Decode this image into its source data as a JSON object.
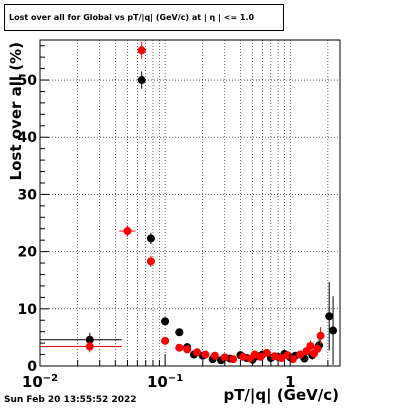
{
  "chart_data": {
    "type": "scatter",
    "title": "Lost over all for Global vs pT/|q| (GeV/c) at | η | <= 1.0",
    "xlabel": "pT/|q| (GeV/c)",
    "ylabel": "Lost over all (%)",
    "xscale": "log",
    "xlim": [
      0.01,
      2.5
    ],
    "ylim": [
      0,
      57
    ],
    "grid": true,
    "x_ticks": [
      {
        "value": 0.01,
        "base": "10",
        "exp": "−2"
      },
      {
        "value": 0.1,
        "base": "10",
        "exp": "−1"
      },
      {
        "value": 1,
        "base": "1",
        "exp": ""
      }
    ],
    "y_ticks": [
      0,
      10,
      20,
      30,
      40,
      50
    ],
    "series": [
      {
        "color": "#000000",
        "points": [
          {
            "x": 0.025,
            "y": 4.6,
            "xlo": 0.01,
            "xhi": 0.045,
            "yerr": 1.2
          },
          {
            "x": 0.065,
            "y": 50.0,
            "xlo": 0.062,
            "xhi": 0.068,
            "yerr": 1.5
          },
          {
            "x": 0.077,
            "y": 22.3,
            "xlo": 0.072,
            "xhi": 0.083,
            "yerr": 1.0
          },
          {
            "x": 0.1,
            "y": 7.8,
            "xlo": 0.093,
            "xhi": 0.107,
            "yerr": 0.7
          },
          {
            "x": 0.13,
            "y": 5.9,
            "xlo": 0.12,
            "xhi": 0.14,
            "yerr": 0.6
          },
          {
            "x": 0.15,
            "y": 3.3,
            "xlo": 0.14,
            "xhi": 0.16,
            "yerr": 0.5
          },
          {
            "x": 0.17,
            "y": 2.0,
            "xlo": 0.16,
            "xhi": 0.18,
            "yerr": 0.4
          },
          {
            "x": 0.2,
            "y": 1.8,
            "xlo": 0.19,
            "xhi": 0.21,
            "yerr": 0.4
          },
          {
            "x": 0.24,
            "y": 1.2,
            "xlo": 0.23,
            "xhi": 0.25,
            "yerr": 0.3
          },
          {
            "x": 0.28,
            "y": 1.0,
            "xlo": 0.27,
            "xhi": 0.29,
            "yerr": 0.3
          },
          {
            "x": 0.33,
            "y": 1.3,
            "xlo": 0.32,
            "xhi": 0.34,
            "yerr": 0.3
          },
          {
            "x": 0.4,
            "y": 1.9,
            "xlo": 0.39,
            "xhi": 0.41,
            "yerr": 0.4
          },
          {
            "x": 0.45,
            "y": 1.4,
            "xlo": 0.44,
            "xhi": 0.46,
            "yerr": 0.4
          },
          {
            "x": 0.5,
            "y": 1.1,
            "xlo": 0.49,
            "xhi": 0.51,
            "yerr": 0.4
          },
          {
            "x": 0.55,
            "y": 1.7,
            "xlo": 0.54,
            "xhi": 0.56,
            "yerr": 0.4
          },
          {
            "x": 0.6,
            "y": 2.0,
            "xlo": 0.59,
            "xhi": 0.61,
            "yerr": 0.5
          },
          {
            "x": 0.7,
            "y": 1.4,
            "xlo": 0.69,
            "xhi": 0.71,
            "yerr": 0.5
          },
          {
            "x": 0.8,
            "y": 1.6,
            "xlo": 0.79,
            "xhi": 0.81,
            "yerr": 0.5
          },
          {
            "x": 0.9,
            "y": 2.1,
            "xlo": 0.89,
            "xhi": 0.91,
            "yerr": 0.5
          },
          {
            "x": 1.0,
            "y": 1.5,
            "xlo": 0.99,
            "xhi": 1.01,
            "yerr": 0.5
          },
          {
            "x": 1.1,
            "y": 1.8,
            "xlo": 1.09,
            "xhi": 1.11,
            "yerr": 0.6
          },
          {
            "x": 1.3,
            "y": 1.3,
            "xlo": 1.29,
            "xhi": 1.31,
            "yerr": 0.6
          },
          {
            "x": 1.5,
            "y": 1.9,
            "xlo": 1.49,
            "xhi": 1.51,
            "yerr": 0.8
          },
          {
            "x": 1.7,
            "y": 3.6,
            "xlo": 1.69,
            "xhi": 1.71,
            "yerr": 1.2
          },
          {
            "x": 2.05,
            "y": 8.7,
            "xlo": 2.03,
            "xhi": 2.07,
            "yerr": 6.0
          },
          {
            "x": 2.2,
            "y": 6.2,
            "xlo": 2.18,
            "xhi": 2.22,
            "yerr": 6.0
          }
        ]
      },
      {
        "color": "#ff0000",
        "points": [
          {
            "x": 0.025,
            "y": 3.4,
            "xlo": 0.01,
            "xhi": 0.045,
            "yerr": 1.0
          },
          {
            "x": 0.05,
            "y": 23.6,
            "xlo": 0.043,
            "xhi": 0.058,
            "yerr": 1.0
          },
          {
            "x": 0.065,
            "y": 55.2,
            "xlo": 0.062,
            "xhi": 0.068,
            "yerr": 1.5
          },
          {
            "x": 0.077,
            "y": 18.3,
            "xlo": 0.072,
            "xhi": 0.083,
            "yerr": 1.0
          },
          {
            "x": 0.1,
            "y": 4.4,
            "xlo": 0.093,
            "xhi": 0.107,
            "yerr": 0.6
          },
          {
            "x": 0.13,
            "y": 3.2,
            "xlo": 0.12,
            "xhi": 0.14,
            "yerr": 0.5
          },
          {
            "x": 0.15,
            "y": 2.9,
            "xlo": 0.14,
            "xhi": 0.16,
            "yerr": 0.5
          },
          {
            "x": 0.18,
            "y": 2.4,
            "xlo": 0.17,
            "xhi": 0.19,
            "yerr": 0.4
          },
          {
            "x": 0.21,
            "y": 2.0,
            "xlo": 0.2,
            "xhi": 0.22,
            "yerr": 0.4
          },
          {
            "x": 0.25,
            "y": 1.8,
            "xlo": 0.24,
            "xhi": 0.26,
            "yerr": 0.3
          },
          {
            "x": 0.3,
            "y": 1.5,
            "xlo": 0.29,
            "xhi": 0.31,
            "yerr": 0.3
          },
          {
            "x": 0.35,
            "y": 1.2,
            "xlo": 0.34,
            "xhi": 0.36,
            "yerr": 0.3
          },
          {
            "x": 0.42,
            "y": 1.6,
            "xlo": 0.41,
            "xhi": 0.43,
            "yerr": 0.4
          },
          {
            "x": 0.48,
            "y": 1.3,
            "xlo": 0.47,
            "xhi": 0.49,
            "yerr": 0.4
          },
          {
            "x": 0.52,
            "y": 2.0,
            "xlo": 0.51,
            "xhi": 0.53,
            "yerr": 0.4
          },
          {
            "x": 0.58,
            "y": 1.6,
            "xlo": 0.57,
            "xhi": 0.59,
            "yerr": 0.4
          },
          {
            "x": 0.65,
            "y": 2.3,
            "xlo": 0.64,
            "xhi": 0.66,
            "yerr": 0.5
          },
          {
            "x": 0.75,
            "y": 1.7,
            "xlo": 0.74,
            "xhi": 0.76,
            "yerr": 0.5
          },
          {
            "x": 0.85,
            "y": 1.4,
            "xlo": 0.84,
            "xhi": 0.86,
            "yerr": 0.5
          },
          {
            "x": 0.95,
            "y": 1.9,
            "xlo": 0.94,
            "xhi": 0.96,
            "yerr": 0.5
          },
          {
            "x": 1.05,
            "y": 1.2,
            "xlo": 1.04,
            "xhi": 1.06,
            "yerr": 0.6
          },
          {
            "x": 1.2,
            "y": 2.0,
            "xlo": 1.19,
            "xhi": 1.21,
            "yerr": 0.6
          },
          {
            "x": 1.35,
            "y": 2.6,
            "xlo": 1.34,
            "xhi": 1.36,
            "yerr": 0.8
          },
          {
            "x": 1.45,
            "y": 3.5,
            "xlo": 1.44,
            "xhi": 1.46,
            "yerr": 1.0
          },
          {
            "x": 1.55,
            "y": 2.2,
            "xlo": 1.54,
            "xhi": 1.56,
            "yerr": 1.0
          },
          {
            "x": 1.65,
            "y": 3.0,
            "xlo": 1.64,
            "xhi": 1.66,
            "yerr": 1.0
          },
          {
            "x": 1.75,
            "y": 5.3,
            "xlo": 1.74,
            "xhi": 1.76,
            "yerr": 1.5
          }
        ]
      }
    ]
  },
  "footer": {
    "date": "Sun Feb 20 13:55:52 2022"
  }
}
